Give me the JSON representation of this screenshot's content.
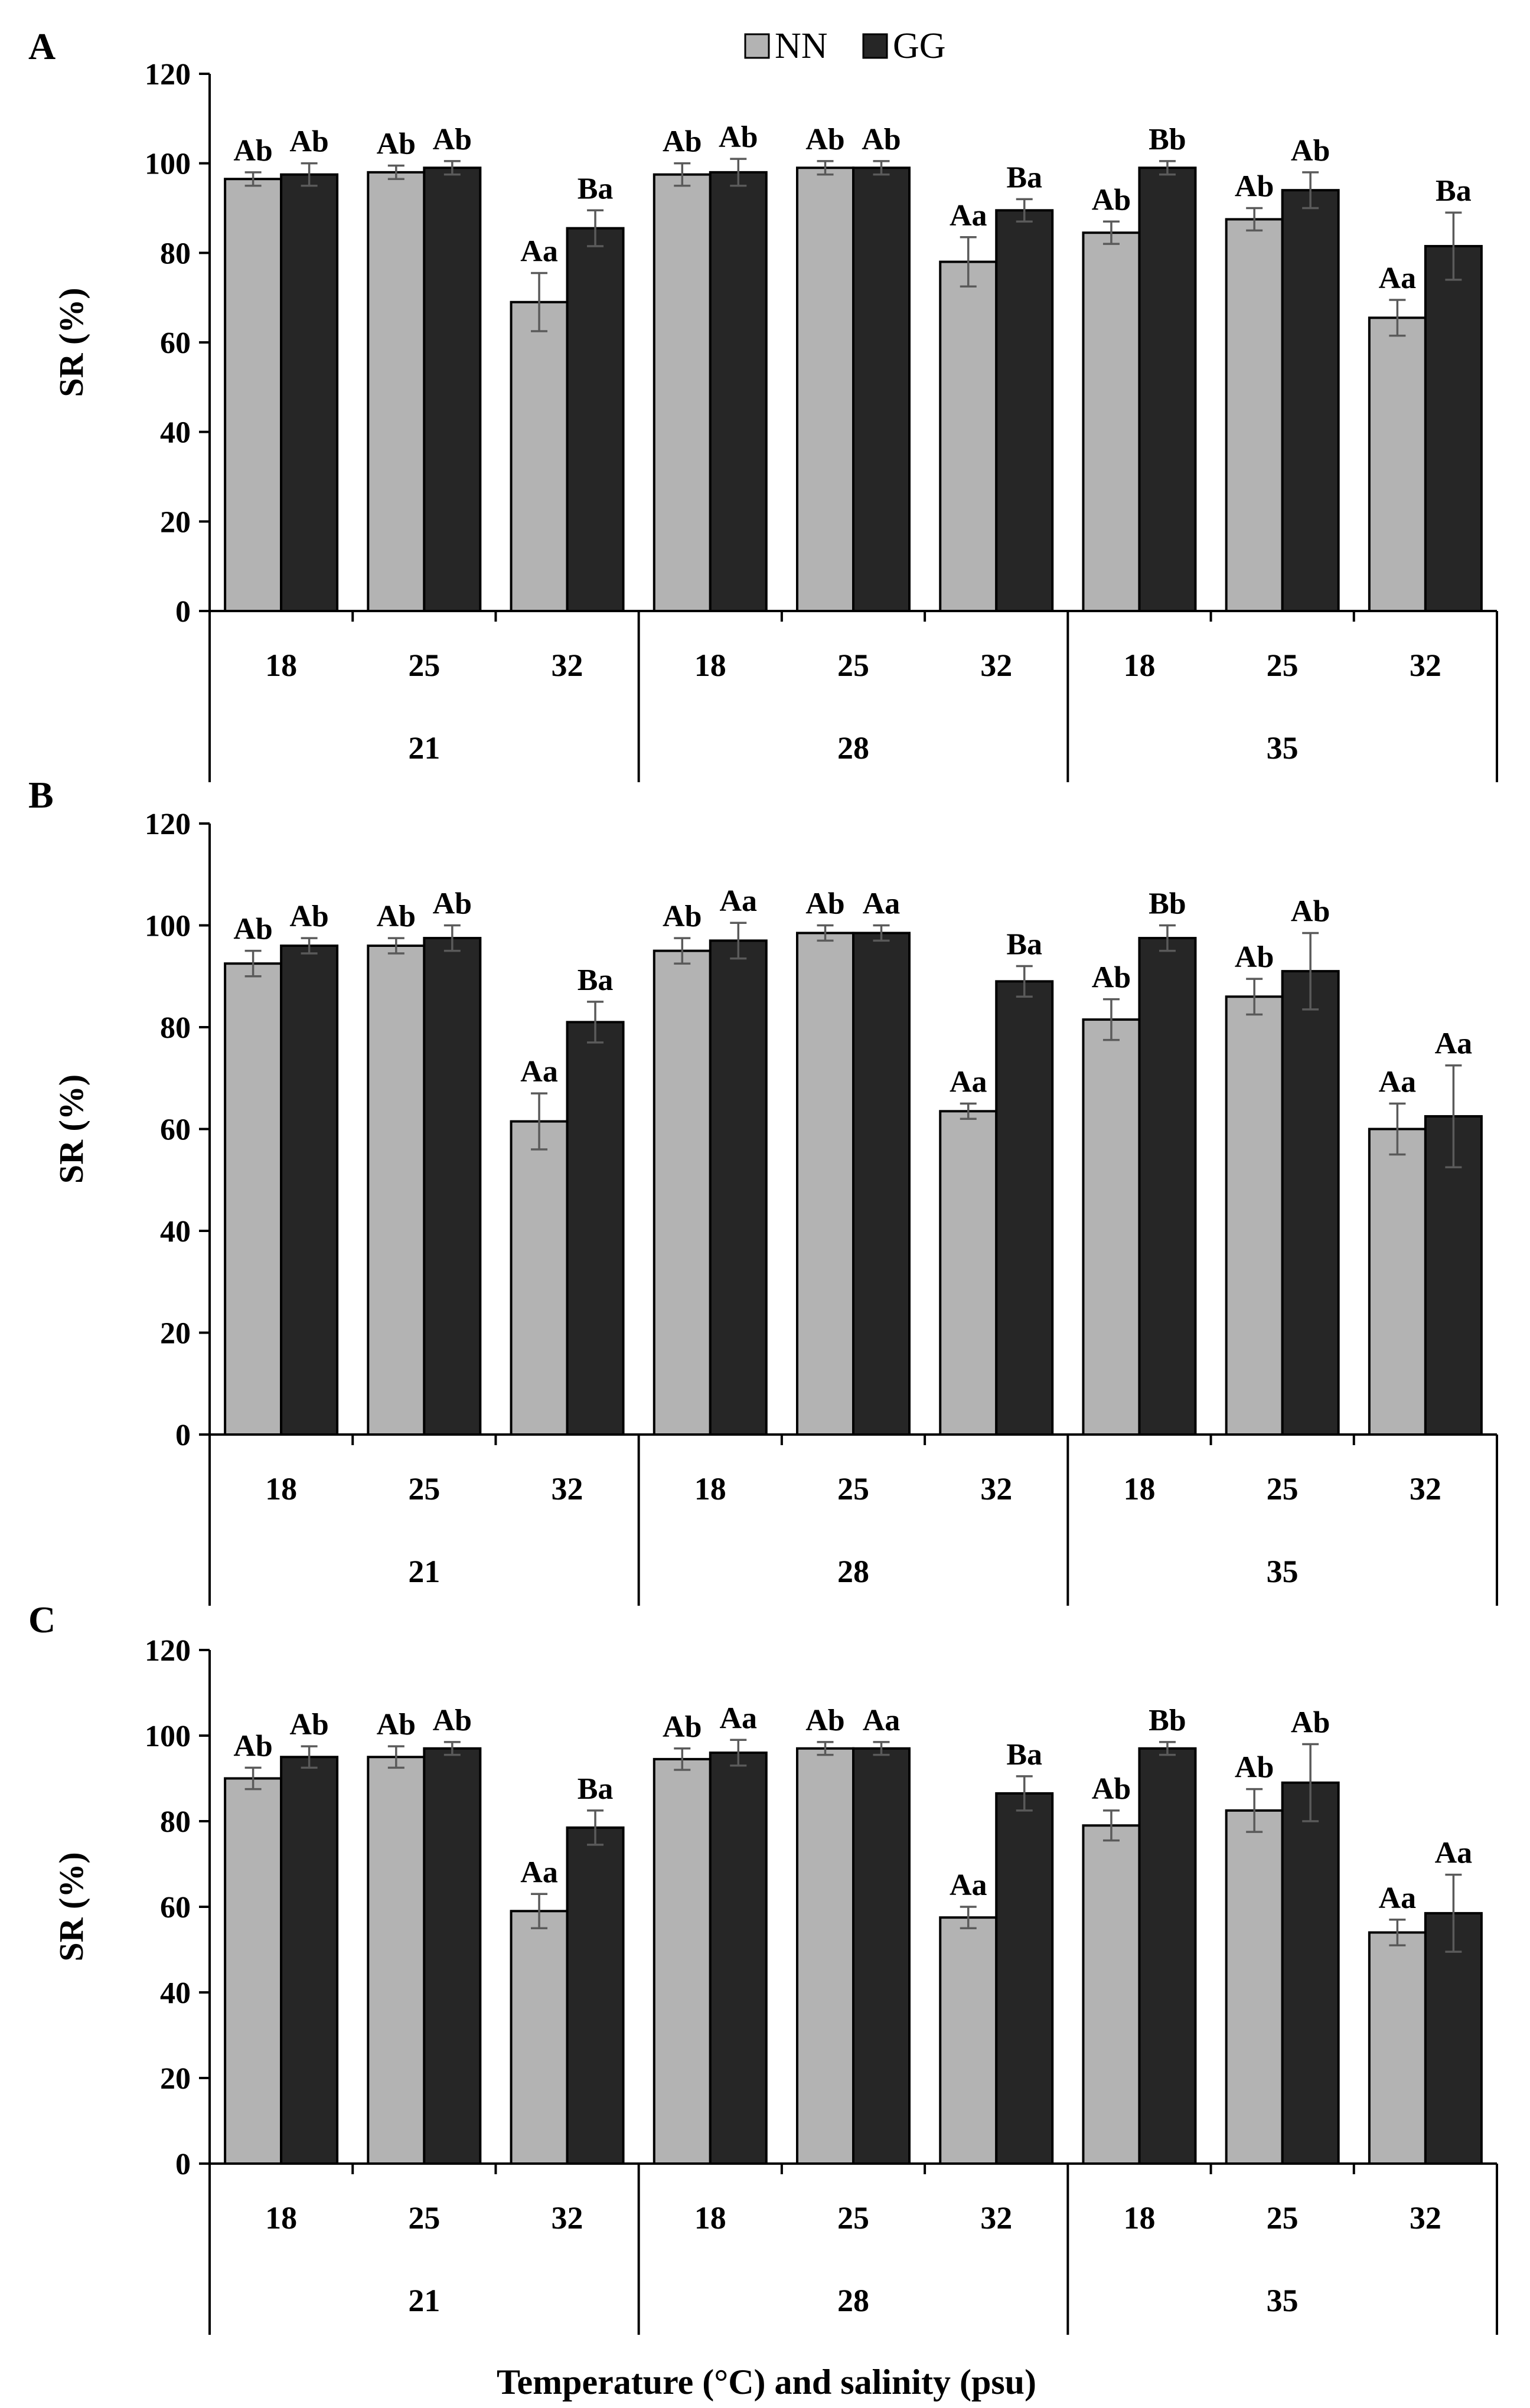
{
  "colors": {
    "nn": "#b3b3b3",
    "gg": "#262626",
    "axis": "#000000",
    "error": "#5a5a5a",
    "background": "#ffffff"
  },
  "legend": {
    "nn": "NN",
    "gg": "GG"
  },
  "x_axis_label": "Temperature (°C) and salinity (psu)",
  "chart_data": [
    {
      "type": "bar",
      "panel": "A",
      "ylabel": "SR (%)",
      "ylim": [
        0,
        120
      ],
      "yticks": [
        0,
        20,
        40,
        60,
        80,
        100,
        120
      ],
      "groups": [
        "21",
        "28",
        "35"
      ],
      "categories": [
        "18",
        "25",
        "32",
        "18",
        "25",
        "32",
        "18",
        "25",
        "32"
      ],
      "series": [
        {
          "name": "NN",
          "values": [
            96.5,
            98,
            69,
            97.5,
            99,
            78,
            84.5,
            87.5,
            65.5
          ],
          "errors": [
            1.5,
            1.5,
            6.5,
            2.5,
            1.5,
            5.5,
            2.5,
            2.5,
            4
          ],
          "labels": [
            "Ab",
            "Ab",
            "Aa",
            "Ab",
            "Ab",
            "Aa",
            "Ab",
            "Ab",
            "Aa"
          ]
        },
        {
          "name": "GG",
          "values": [
            97.5,
            99,
            85.5,
            98,
            99,
            89.5,
            99,
            94,
            81.5
          ],
          "errors": [
            2.5,
            1.5,
            4,
            3,
            1.5,
            2.5,
            1.5,
            4,
            7.5
          ],
          "labels": [
            "Ab",
            "Ab",
            "Ba",
            "Ab",
            "Ab",
            "Ba",
            "Bb",
            "Ab",
            "Ba"
          ]
        }
      ]
    },
    {
      "type": "bar",
      "panel": "B",
      "ylabel": "SR (%)",
      "ylim": [
        0,
        120
      ],
      "yticks": [
        0,
        20,
        40,
        60,
        80,
        100,
        120
      ],
      "groups": [
        "21",
        "28",
        "35"
      ],
      "categories": [
        "18",
        "25",
        "32",
        "18",
        "25",
        "32",
        "18",
        "25",
        "32"
      ],
      "series": [
        {
          "name": "NN",
          "values": [
            92.5,
            96,
            61.5,
            95,
            98.5,
            63.5,
            81.5,
            86,
            60
          ],
          "errors": [
            2.5,
            1.5,
            5.5,
            2.5,
            1.5,
            1.5,
            4,
            3.5,
            5
          ],
          "labels": [
            "Ab",
            "Ab",
            "Aa",
            "Ab",
            "Ab",
            "Aa",
            "Ab",
            "Ab",
            "Aa"
          ]
        },
        {
          "name": "GG",
          "values": [
            96,
            97.5,
            81,
            97,
            98.5,
            89,
            97.5,
            91,
            62.5
          ],
          "errors": [
            1.5,
            2.5,
            4,
            3.5,
            1.5,
            3,
            2.5,
            7.5,
            10
          ],
          "labels": [
            "Ab",
            "Ab",
            "Ba",
            "Aa",
            "Aa",
            "Ba",
            "Bb",
            "Ab",
            "Aa"
          ]
        }
      ]
    },
    {
      "type": "bar",
      "panel": "C",
      "ylabel": "SR (%)",
      "ylim": [
        0,
        120
      ],
      "yticks": [
        0,
        20,
        40,
        60,
        80,
        100,
        120
      ],
      "groups": [
        "21",
        "28",
        "35"
      ],
      "categories": [
        "18",
        "25",
        "32",
        "18",
        "25",
        "32",
        "18",
        "25",
        "32"
      ],
      "series": [
        {
          "name": "NN",
          "values": [
            90,
            95,
            59,
            94.5,
            97,
            57.5,
            79,
            82.5,
            54
          ],
          "errors": [
            2.5,
            2.5,
            4,
            2.5,
            1.5,
            2.5,
            3.5,
            5,
            3
          ],
          "labels": [
            "Ab",
            "Ab",
            "Aa",
            "Ab",
            "Ab",
            "Aa",
            "Ab",
            "Ab",
            "Aa"
          ]
        },
        {
          "name": "GG",
          "values": [
            95,
            97,
            78.5,
            96,
            97,
            86.5,
            97,
            89,
            58.5
          ],
          "errors": [
            2.5,
            1.5,
            4,
            3,
            1.5,
            4,
            1.5,
            9,
            9
          ],
          "labels": [
            "Ab",
            "Ab",
            "Ba",
            "Aa",
            "Aa",
            "Ba",
            "Bb",
            "Ab",
            "Aa"
          ]
        }
      ]
    }
  ]
}
